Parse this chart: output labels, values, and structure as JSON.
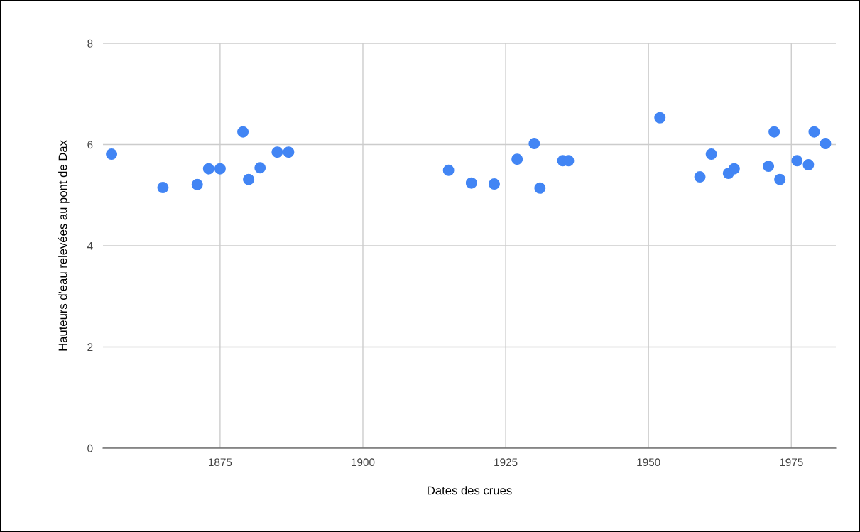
{
  "chart_data": {
    "type": "scatter",
    "xlabel": "Dates des crues",
    "ylabel": "Hauteurs d'eau relevées au pont de Dax",
    "x": [
      1856,
      1865,
      1871,
      1873,
      1875,
      1879,
      1880,
      1882,
      1885,
      1887,
      1915,
      1919,
      1923,
      1927,
      1930,
      1931,
      1935,
      1936,
      1952,
      1959,
      1961,
      1964,
      1965,
      1971,
      1972,
      1973,
      1976,
      1978,
      1979,
      1981
    ],
    "series": [
      {
        "color": "#4285f4",
        "values": [
          5.81,
          5.15,
          5.21,
          5.52,
          5.52,
          6.25,
          5.31,
          5.54,
          5.85,
          5.85,
          5.49,
          5.24,
          5.22,
          5.71,
          6.02,
          5.14,
          5.68,
          5.68,
          6.53,
          5.36,
          5.81,
          5.43,
          5.52,
          5.57,
          6.25,
          5.31,
          5.68,
          5.6,
          6.25,
          6.02
        ]
      }
    ],
    "xlim": [
      1854.5,
      1982.8
    ],
    "xticks": [
      1875,
      1900,
      1925,
      1950,
      1975
    ],
    "ylim": [
      0,
      8
    ],
    "yticks": [
      0,
      2,
      4,
      6,
      8
    ],
    "grid": true,
    "marker": "circle",
    "legend": false
  }
}
